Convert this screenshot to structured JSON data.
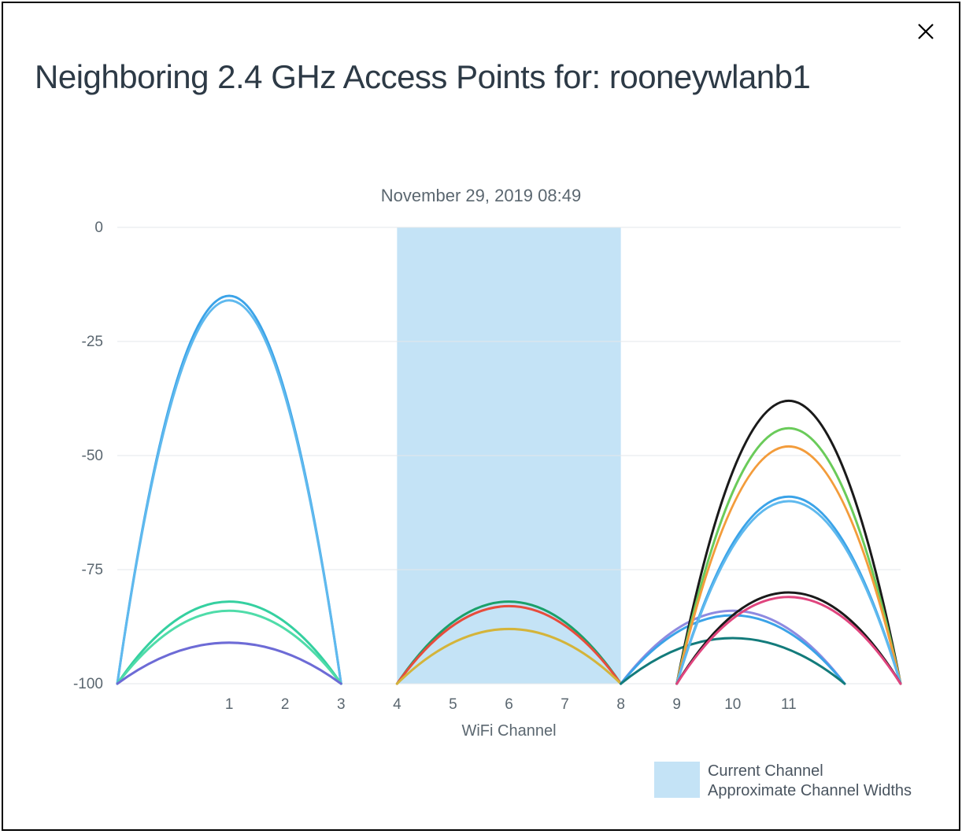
{
  "title": "Neighboring 2.4 GHz Access Points for: rooneywlanb1",
  "subtitle": "November 29, 2019 08:49",
  "chart": {
    "type": "wifi-channel-arcs",
    "background_color": "#ffffff",
    "grid_color": "#e3e7eb",
    "axis_text_color": "#5b6770",
    "axis_fontsize": 19,
    "label_fontsize": 20,
    "x": {
      "domain_min": -1,
      "domain_max": 13,
      "ticks": [
        1,
        2,
        3,
        4,
        5,
        6,
        7,
        8,
        9,
        10,
        11
      ],
      "label": "WiFi Channel"
    },
    "y": {
      "domain_min": -100,
      "domain_max": 0,
      "ticks": [
        0,
        -25,
        -50,
        -75,
        -100
      ],
      "label": ""
    },
    "current_channel_band": {
      "start": 4,
      "end": 8,
      "fill": "#c4e3f6"
    },
    "curve_stroke_width": 3,
    "curves": [
      {
        "center": 1,
        "half_width": 2,
        "peak": -15,
        "color": "#3ba3e8"
      },
      {
        "center": 1,
        "half_width": 2,
        "peak": -16,
        "color": "#5fb9ee"
      },
      {
        "center": 1,
        "half_width": 2,
        "peak": -82,
        "color": "#35d0a0"
      },
      {
        "center": 1,
        "half_width": 2,
        "peak": -84,
        "color": "#4fdca9"
      },
      {
        "center": 1,
        "half_width": 2,
        "peak": -91,
        "color": "#6d6bd6"
      },
      {
        "center": 6,
        "half_width": 2,
        "peak": -82,
        "color": "#1aa06a"
      },
      {
        "center": 6,
        "half_width": 2,
        "peak": -83,
        "color": "#e74c3c"
      },
      {
        "center": 6,
        "half_width": 2,
        "peak": -88,
        "color": "#d4b43a"
      },
      {
        "center": 10,
        "half_width": 2,
        "peak": -84,
        "color": "#8e8ae0"
      },
      {
        "center": 10,
        "half_width": 2,
        "peak": -85,
        "color": "#3ba3e8"
      },
      {
        "center": 10,
        "half_width": 2,
        "peak": -90,
        "color": "#137b7b"
      },
      {
        "center": 11,
        "half_width": 2,
        "peak": -38,
        "color": "#1a1a1a"
      },
      {
        "center": 11,
        "half_width": 2,
        "peak": -44,
        "color": "#6acb5a"
      },
      {
        "center": 11,
        "half_width": 2,
        "peak": -48,
        "color": "#f39c3b"
      },
      {
        "center": 11,
        "half_width": 2,
        "peak": -59,
        "color": "#3ba3e8"
      },
      {
        "center": 11,
        "half_width": 2,
        "peak": -60,
        "color": "#5fb9ee"
      },
      {
        "center": 11,
        "half_width": 2,
        "peak": -80,
        "color": "#1a1a1a"
      },
      {
        "center": 11,
        "half_width": 2,
        "peak": -81,
        "color": "#e0457e"
      }
    ]
  },
  "legend": {
    "swatch_color": "#c4e3f6",
    "line1": "Current Channel",
    "line2": "Approximate Channel Widths"
  }
}
